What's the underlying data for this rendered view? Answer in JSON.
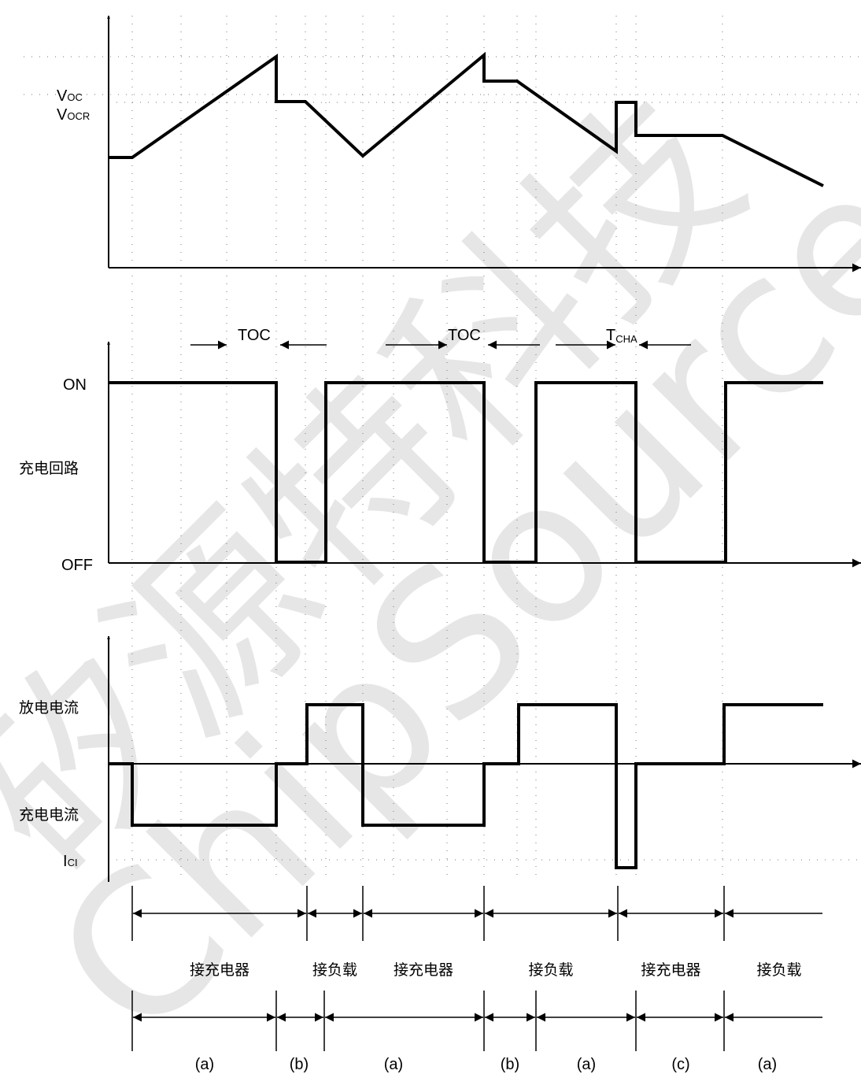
{
  "watermark": {
    "chinese": "矽源特科技",
    "english": "ChipSource Tech"
  },
  "voltage_panel": {
    "levels": [
      {
        "base": "V",
        "sub": "OC"
      },
      {
        "base": "V",
        "sub": "OCR"
      }
    ]
  },
  "switch_panel": {
    "on_label": "ON",
    "off_label": "OFF",
    "row_label": "充电回路",
    "timings": [
      {
        "base": "T",
        "sub": "OC"
      },
      {
        "base": "T",
        "sub": "OC"
      },
      {
        "base": "T",
        "sub": "CHA"
      }
    ]
  },
  "current_panel": {
    "discharge_label": "放电电流",
    "charge_label": "充电电流",
    "ici_label": {
      "base": "I",
      "sub": "CI"
    }
  },
  "connection_phases": [
    "接充电器",
    "接负载",
    "接充电器",
    "接负载",
    "接充电器",
    "接负载"
  ],
  "state_phases": [
    "(a)",
    "(b)",
    "(a)",
    "(b)",
    "(a)",
    "(c)",
    "(a)"
  ]
}
